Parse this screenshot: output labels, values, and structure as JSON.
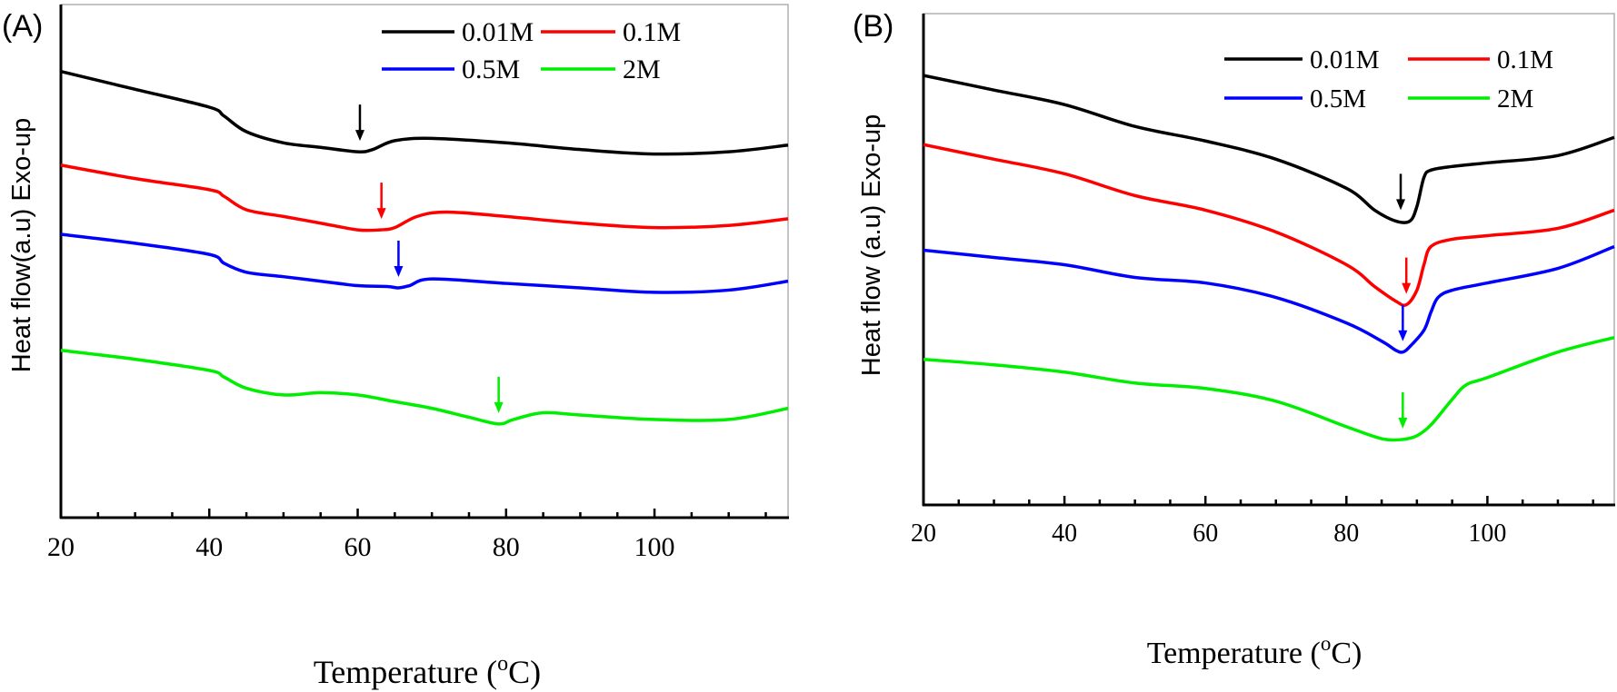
{
  "chart_data": [
    {
      "type": "line",
      "panel_label": "(A)",
      "xlabel_main": "Temperature (",
      "xlabel_sup": "o",
      "xlabel_tail": "C)",
      "ylabel": "Heat flow(a.u) Exo-up",
      "xlim": [
        20,
        118
      ],
      "x_ticks": [
        20,
        40,
        60,
        80,
        100
      ],
      "y_ticks_visible": false,
      "legend_placement": "top-right",
      "series": [
        {
          "name": "0.01M",
          "color": "#000000",
          "x": [
            20,
            30,
            40,
            42,
            45,
            50,
            55,
            60,
            62,
            65,
            70,
            80,
            90,
            100,
            110,
            118
          ],
          "y": [
            10.0,
            9.6,
            9.2,
            9.0,
            8.65,
            8.4,
            8.3,
            8.2,
            8.25,
            8.45,
            8.5,
            8.4,
            8.25,
            8.15,
            8.2,
            8.35
          ],
          "arrow_x": 60.3
        },
        {
          "name": "0.1M",
          "color": "#ff0000",
          "x": [
            20,
            30,
            40,
            42,
            45,
            50,
            55,
            60,
            63,
            65,
            68,
            72,
            80,
            90,
            100,
            110,
            118
          ],
          "y": [
            7.9,
            7.6,
            7.35,
            7.2,
            6.9,
            6.75,
            6.6,
            6.45,
            6.45,
            6.5,
            6.75,
            6.85,
            6.75,
            6.6,
            6.5,
            6.55,
            6.7
          ],
          "arrow_x": 63.2
        },
        {
          "name": "0.5M",
          "color": "#0000ff",
          "x": [
            20,
            30,
            40,
            42,
            45,
            50,
            55,
            60,
            64,
            65.5,
            67,
            70,
            80,
            90,
            100,
            110,
            118
          ],
          "y": [
            6.35,
            6.15,
            5.9,
            5.7,
            5.5,
            5.4,
            5.3,
            5.2,
            5.18,
            5.15,
            5.2,
            5.35,
            5.25,
            5.15,
            5.05,
            5.1,
            5.3
          ],
          "arrow_x": 65.5
        },
        {
          "name": "2M",
          "color": "#00ee00",
          "x": [
            20,
            30,
            40,
            42,
            45,
            50,
            55,
            60,
            65,
            70,
            75,
            79,
            81,
            85,
            90,
            100,
            110,
            118
          ],
          "y": [
            3.75,
            3.55,
            3.3,
            3.15,
            2.9,
            2.75,
            2.8,
            2.75,
            2.6,
            2.45,
            2.25,
            2.1,
            2.2,
            2.35,
            2.3,
            2.2,
            2.2,
            2.45
          ],
          "arrow_x": 79
        }
      ]
    },
    {
      "type": "line",
      "panel_label": "(B)",
      "xlabel_main": "Temperature (",
      "xlabel_sup": "o",
      "xlabel_tail": "C)",
      "ylabel": "Heat flow (a.u) Exo-up",
      "xlim": [
        20,
        118
      ],
      "x_ticks": [
        20,
        40,
        60,
        80,
        100
      ],
      "y_ticks_visible": false,
      "legend_placement": "top-right",
      "series": [
        {
          "name": "0.01M",
          "color": "#000000",
          "x": [
            20,
            30,
            40,
            50,
            60,
            70,
            80,
            84,
            87,
            89,
            90,
            91,
            92,
            95,
            100,
            110,
            118
          ],
          "y": [
            10.8,
            10.4,
            10.0,
            9.4,
            9.0,
            8.5,
            7.7,
            7.1,
            6.8,
            6.8,
            7.2,
            8.0,
            8.2,
            8.3,
            8.4,
            8.6,
            9.1
          ],
          "arrow_x": 87.7
        },
        {
          "name": "0.1M",
          "color": "#ff0000",
          "x": [
            20,
            30,
            40,
            50,
            60,
            70,
            80,
            84,
            87,
            88.5,
            90,
            91,
            92,
            95,
            100,
            110,
            118
          ],
          "y": [
            8.9,
            8.5,
            8.1,
            7.5,
            7.1,
            6.5,
            5.6,
            5.0,
            4.6,
            4.5,
            4.9,
            5.6,
            6.1,
            6.3,
            6.4,
            6.6,
            7.1
          ],
          "arrow_x": 88.5
        },
        {
          "name": "0.5M",
          "color": "#0000ff",
          "x": [
            20,
            30,
            40,
            50,
            60,
            70,
            80,
            85,
            87,
            88,
            89,
            91,
            92,
            93,
            95,
            100,
            110,
            118
          ],
          "y": [
            6.0,
            5.8,
            5.6,
            5.25,
            5.1,
            4.7,
            4.0,
            3.5,
            3.25,
            3.2,
            3.35,
            3.8,
            4.3,
            4.7,
            4.9,
            5.1,
            5.5,
            6.1
          ],
          "arrow_x": 88
        },
        {
          "name": "2M",
          "color": "#00ee00",
          "x": [
            20,
            30,
            40,
            50,
            60,
            70,
            80,
            85,
            88,
            90,
            92,
            95,
            97,
            100,
            110,
            118
          ],
          "y": [
            3.0,
            2.85,
            2.65,
            2.35,
            2.2,
            1.85,
            1.15,
            0.82,
            0.8,
            0.9,
            1.2,
            1.9,
            2.3,
            2.5,
            3.2,
            3.6
          ],
          "arrow_x": 88
        }
      ]
    }
  ]
}
